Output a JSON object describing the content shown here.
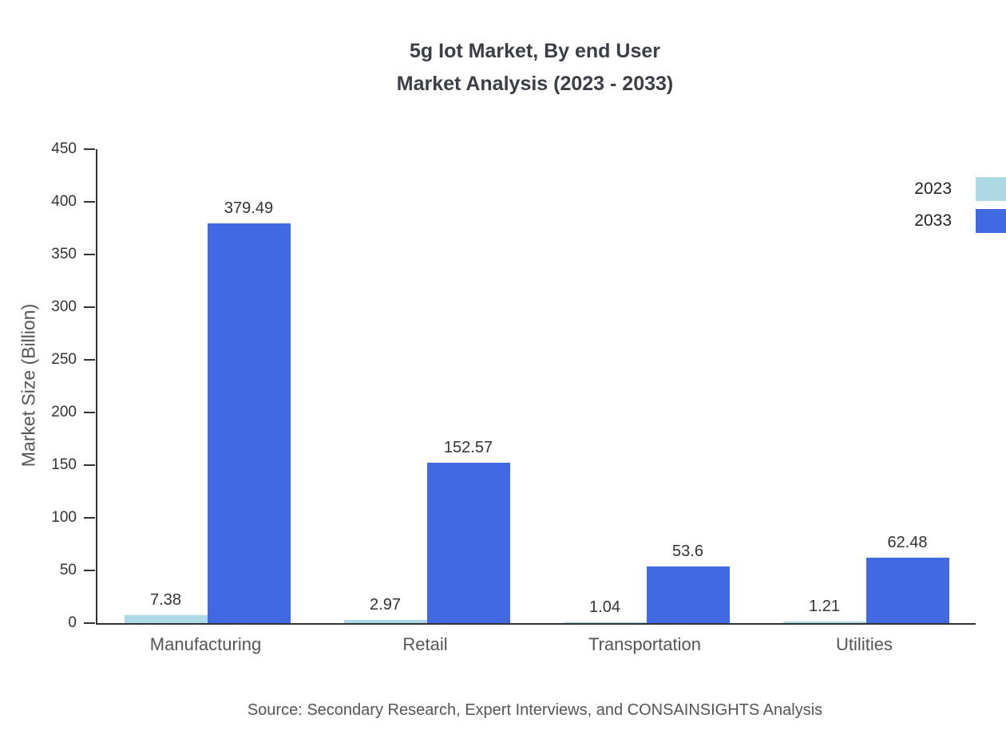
{
  "chart_data": {
    "type": "bar",
    "title": "5g Iot Market, By end User",
    "subtitle": "Market Analysis (2023 - 2033)",
    "categories": [
      "Manufacturing",
      "Retail",
      "Transportation",
      "Utilities"
    ],
    "series": [
      {
        "name": "2023",
        "color": "#add8e6",
        "values": [
          7.38,
          2.97,
          1.04,
          1.21
        ],
        "labels": [
          "7.38",
          "2.97",
          "1.04",
          "1.21"
        ]
      },
      {
        "name": "2033",
        "color": "#4169e1",
        "values": [
          379.49,
          152.57,
          53.6,
          62.48
        ],
        "labels": [
          "379.49",
          "152.57",
          "53.6",
          "62.48"
        ]
      }
    ],
    "xlabel": "",
    "ylabel": "Market Size (Billion)",
    "ylim": [
      0,
      450
    ],
    "yticks": [
      0,
      50,
      100,
      150,
      200,
      250,
      300,
      350,
      400,
      450
    ],
    "grid": false,
    "legend_position": "right-top",
    "source": "Source: Secondary Research, Expert Interviews, and CONSAINSIGHTS Analysis"
  }
}
